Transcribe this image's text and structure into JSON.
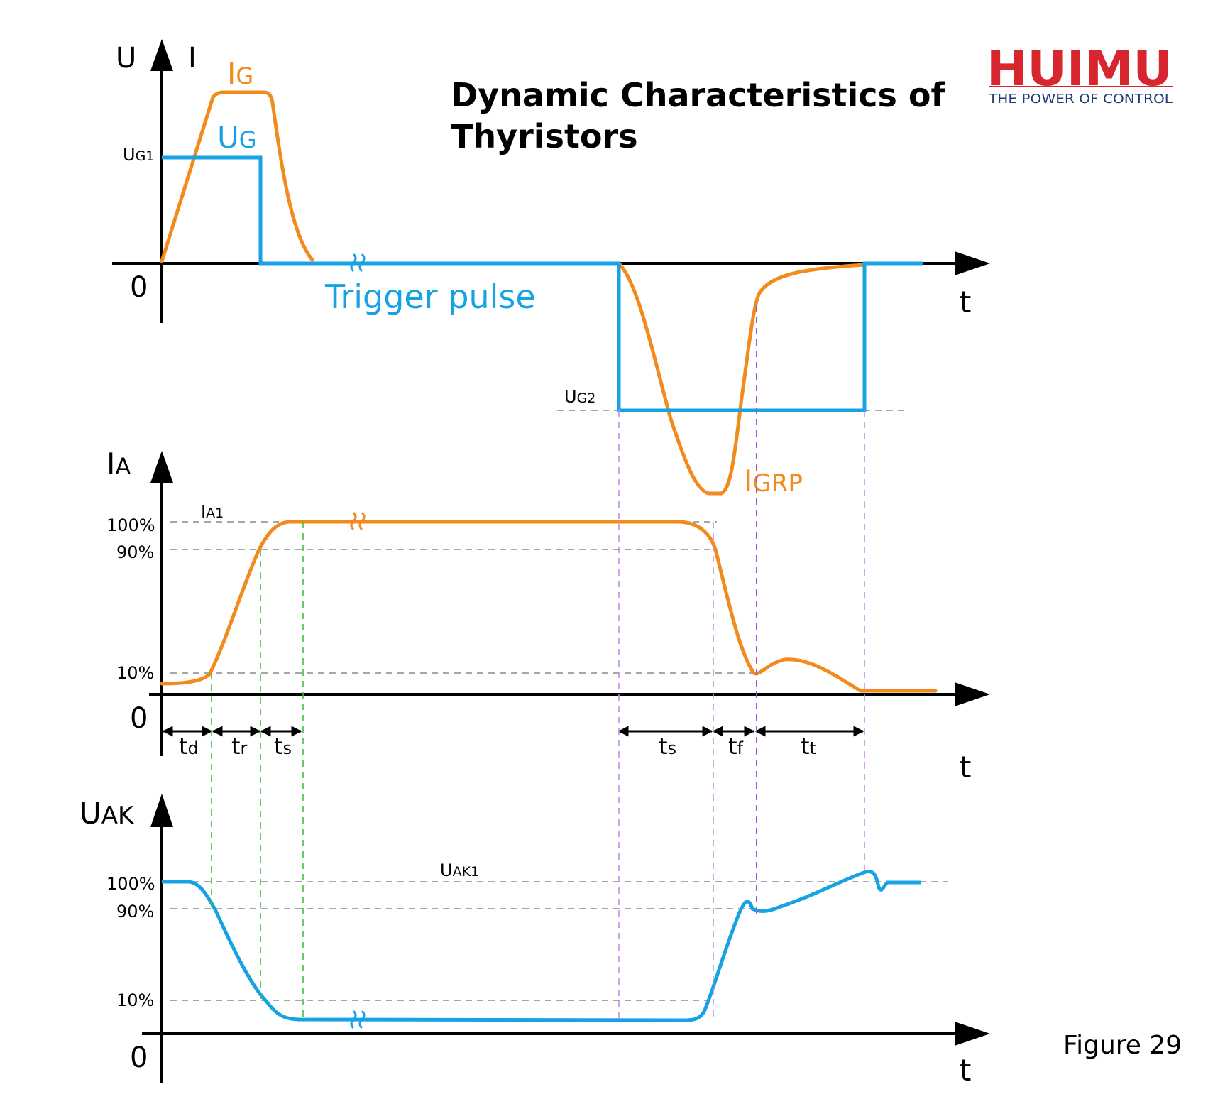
{
  "title_line1": "Dynamic Characteristics of",
  "title_line2": "Thyristors",
  "logo": {
    "name": "HUIMU",
    "tagline": "THE POWER OF CONTROL",
    "color": "#d7262e"
  },
  "figure_label": "Figure 29",
  "colors": {
    "orange": "#f28a1c",
    "blue": "#17a3e3",
    "purple": "#c98ee6",
    "green": "#3fbf3f"
  },
  "top_panel": {
    "u_axis": "U",
    "i_axis": "I",
    "ig": {
      "main": "I",
      "sub": "G"
    },
    "ug": {
      "main": "U",
      "sub": "G"
    },
    "ug1": {
      "main": "U",
      "sub": "G1"
    },
    "ug2": {
      "main": "U",
      "sub": "G2"
    },
    "zero": "0",
    "t": "t",
    "trigger_pulse": "Trigger pulse",
    "igrp": {
      "main": "I",
      "sub": "GRP"
    }
  },
  "middle_panel": {
    "ia": {
      "main": "I",
      "sub": "A"
    },
    "ia1": {
      "main": "I",
      "sub": "A1"
    },
    "p100": "100%",
    "p90": "90%",
    "p10": "10%",
    "zero": "0",
    "t": "t",
    "td": {
      "main": "t",
      "sub": "d"
    },
    "tr": {
      "main": "t",
      "sub": "r"
    },
    "ts1": {
      "main": "t",
      "sub": "s"
    },
    "ts2": {
      "main": "t",
      "sub": "s"
    },
    "tf": {
      "main": "t",
      "sub": "f"
    },
    "tt": {
      "main": "t",
      "sub": "t"
    }
  },
  "bottom_panel": {
    "uak": {
      "main": "U",
      "sub": "AK"
    },
    "uak1": {
      "main": "U",
      "sub": "AK1"
    },
    "p100": "100%",
    "p90": "90%",
    "p10": "10%",
    "zero": "0",
    "t": "t"
  }
}
